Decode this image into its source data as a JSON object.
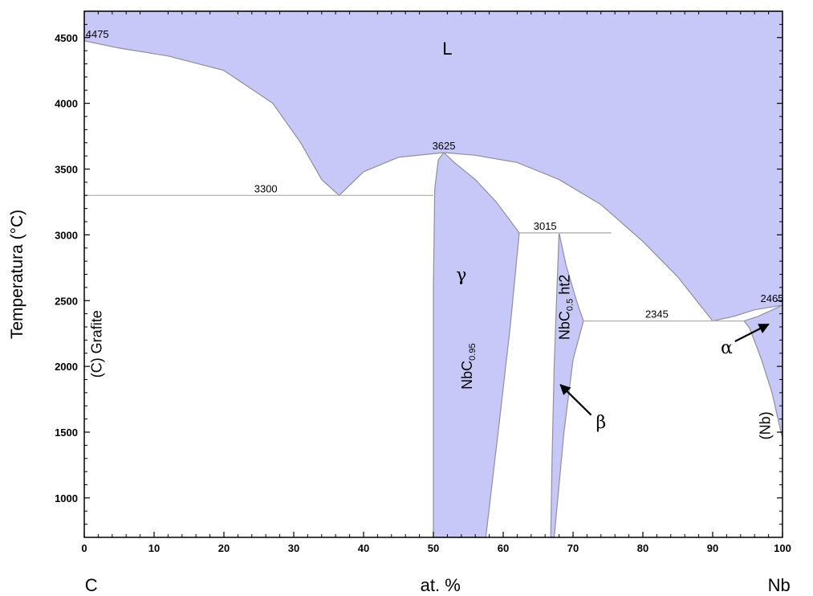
{
  "chart_data": {
    "type": "area",
    "title": "",
    "xlabel": "at. %",
    "ylabel": "Temperatura (°C)",
    "xlim": [
      0,
      100
    ],
    "ylim": [
      700,
      4700
    ],
    "x_ticks": [
      0,
      10,
      20,
      30,
      40,
      50,
      60,
      70,
      80,
      90,
      100
    ],
    "y_ticks": [
      1000,
      1500,
      2000,
      2500,
      3000,
      3500,
      4000,
      4500
    ],
    "axis_end_labels": {
      "left": "C",
      "right": "Nb"
    },
    "colors": {
      "phase_fill": "#c8c8f8",
      "boundary": "#8f8f9f",
      "isotherm": "#b0b0b0"
    },
    "regions": [
      {
        "name": "L",
        "points": [
          [
            0,
            4475
          ],
          [
            5,
            4420
          ],
          [
            12,
            4360
          ],
          [
            20,
            4250
          ],
          [
            27,
            4000
          ],
          [
            31,
            3700
          ],
          [
            34,
            3420
          ],
          [
            36.5,
            3300
          ],
          [
            40,
            3480
          ],
          [
            45,
            3590
          ],
          [
            51.5,
            3625
          ],
          [
            56,
            3605
          ],
          [
            62,
            3550
          ],
          [
            68,
            3420
          ],
          [
            74,
            3230
          ],
          [
            80,
            2950
          ],
          [
            85,
            2680
          ],
          [
            90,
            2345
          ],
          [
            93,
            2380
          ],
          [
            96,
            2430
          ],
          [
            100,
            2465
          ],
          [
            100,
            4700
          ],
          [
            0,
            4700
          ]
        ]
      },
      {
        "name": "NbC0.95",
        "points": [
          [
            50,
            700
          ],
          [
            50,
            2600
          ],
          [
            50.2,
            3350
          ],
          [
            50.7,
            3570
          ],
          [
            51.5,
            3625
          ],
          [
            53,
            3550
          ],
          [
            56,
            3420
          ],
          [
            59,
            3250
          ],
          [
            62.3,
            3015
          ],
          [
            61,
            2300
          ],
          [
            59.5,
            1600
          ],
          [
            57.5,
            700
          ]
        ]
      },
      {
        "name": "NbC0.5 ht2",
        "points": [
          [
            66.8,
            700
          ],
          [
            67,
            1300
          ],
          [
            67.3,
            2000
          ],
          [
            67.7,
            2600
          ],
          [
            68,
            3015
          ],
          [
            69,
            2770
          ],
          [
            70.5,
            2500
          ],
          [
            71.5,
            2345
          ],
          [
            70,
            2050
          ],
          [
            68.7,
            1500
          ],
          [
            67.3,
            700
          ]
        ]
      },
      {
        "name": "(Nb)",
        "points": [
          [
            100,
            2465
          ],
          [
            96.5,
            2380
          ],
          [
            94.5,
            2345
          ],
          [
            95.3,
            2290
          ],
          [
            97,
            2050
          ],
          [
            98.5,
            1800
          ],
          [
            100,
            1450
          ]
        ]
      }
    ],
    "isotherms": [
      {
        "value": 3300,
        "x_range": [
          0,
          50
        ]
      },
      {
        "value": 3015,
        "x_range": [
          62,
          75.5
        ]
      },
      {
        "value": 2345,
        "x_range": [
          71.5,
          94.5
        ]
      }
    ],
    "annotations": [
      {
        "text": "4475",
        "x": 0.2,
        "y": 4475
      },
      {
        "text": "3300",
        "x": 26,
        "y": 3300
      },
      {
        "text": "3625",
        "x": 51.5,
        "y": 3625
      },
      {
        "text": "3015",
        "x": 66,
        "y": 3015
      },
      {
        "text": "2345",
        "x": 82,
        "y": 2345
      },
      {
        "text": "2465",
        "x": 98.5,
        "y": 2465
      }
    ],
    "phase_labels": [
      {
        "text": "L",
        "x": 52,
        "y": 4370
      },
      {
        "text": "γ",
        "x": 54,
        "y": 2650
      },
      {
        "text": "NbC0.95",
        "x": 55.5,
        "y": 2000,
        "rotate": true
      },
      {
        "text": "NbC0.5 ht2",
        "x": 69.5,
        "y": 2450,
        "rotate": true
      },
      {
        "text": "(C) Grafite",
        "x": 2.5,
        "y": 2170,
        "rotate": true
      },
      {
        "text": "(Nb)",
        "x": 98.2,
        "y": 1550,
        "rotate": true
      },
      {
        "text": "α",
        "x": 92,
        "y": 2100
      },
      {
        "text": "β",
        "x": 74,
        "y": 1530
      }
    ]
  }
}
